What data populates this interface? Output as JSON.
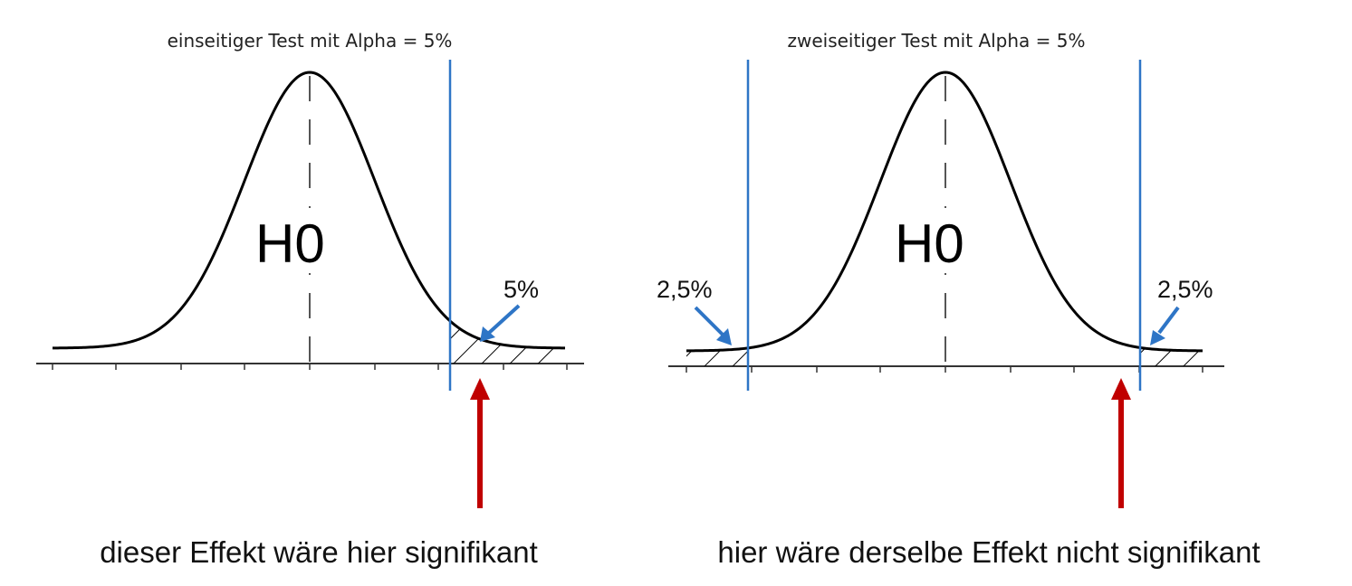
{
  "left_panel": {
    "title": "einseitiger Test mit Alpha = 5%",
    "hypothesis_label": "H0",
    "tail_label": "5%",
    "caption": "dieser Effekt wäre hier signifikant"
  },
  "right_panel": {
    "title": "zweiseitiger Test mit Alpha = 5%",
    "hypothesis_label": "H0",
    "left_tail_label": "2,5%",
    "right_tail_label": "2,5%",
    "caption": "hier wäre derselbe Effekt nicht signifikant"
  },
  "colors": {
    "critical_line": "#2e75c6",
    "effect_arrow": "#c00000",
    "curve": "#000000"
  }
}
